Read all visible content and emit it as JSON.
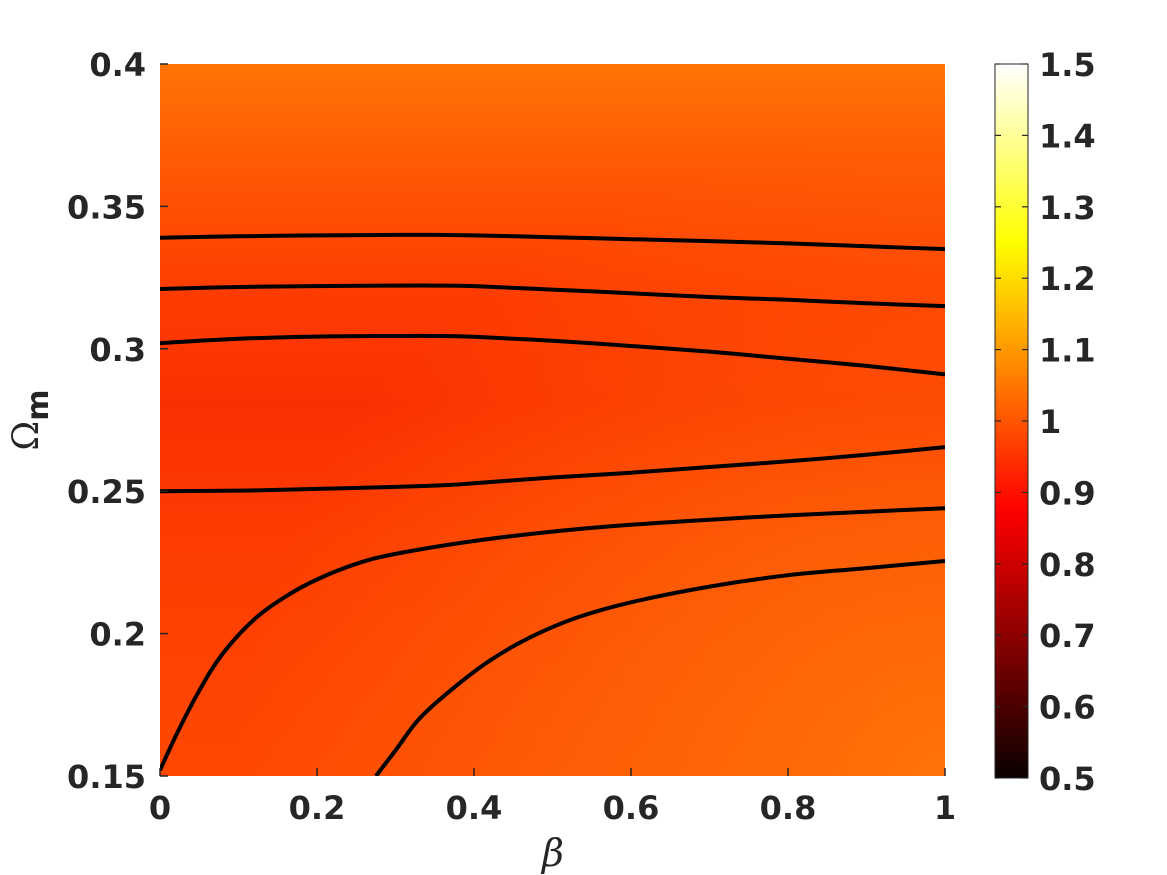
{
  "chart_data": {
    "type": "heatmap",
    "title": "",
    "xlabel": "β",
    "ylabel_symbol": "Ω",
    "ylabel_subscript": "m",
    "xlim": [
      0,
      1
    ],
    "ylim": [
      0.15,
      0.4
    ],
    "x_ticks": [
      0,
      0.2,
      0.4,
      0.6,
      0.8,
      1
    ],
    "x_tick_labels": [
      "0",
      "0.2",
      "0.4",
      "0.6",
      "0.8",
      "1"
    ],
    "y_ticks": [
      0.15,
      0.2,
      0.25,
      0.3,
      0.35,
      0.4
    ],
    "y_tick_labels": [
      "0.15",
      "0.2",
      "0.25",
      "0.3",
      "0.35",
      "0.4"
    ],
    "colorbar": {
      "colormap": "hot",
      "range": [
        0.5,
        1.5
      ],
      "ticks": [
        0.5,
        0.6,
        0.7,
        0.8,
        0.9,
        1,
        1.1,
        1.2,
        1.3,
        1.4,
        1.5
      ],
      "tick_labels": [
        "0.5",
        "0.6",
        "0.7",
        "0.8",
        "0.9",
        "1",
        "1.1",
        "1.2",
        "1.3",
        "1.4",
        "1.5"
      ]
    },
    "heatmap_samples": {
      "x": [
        0,
        0.5,
        1
      ],
      "y": [
        0.15,
        0.2,
        0.25,
        0.275,
        0.3,
        0.35,
        0.4
      ],
      "z": [
        [
          0.99,
          1.01,
          1.05
        ],
        [
          0.98,
          0.99,
          1.01
        ],
        [
          0.97,
          0.97,
          0.98
        ],
        [
          0.96,
          0.96,
          0.97
        ],
        [
          0.97,
          0.97,
          0.98
        ],
        [
          0.99,
          0.99,
          1.0
        ],
        [
          1.04,
          1.04,
          1.04
        ]
      ]
    },
    "contours": [
      {
        "name": "c1",
        "points": [
          [
            0,
            0.339
          ],
          [
            0.1,
            0.3395
          ],
          [
            0.2,
            0.3398
          ],
          [
            0.3,
            0.34
          ],
          [
            0.35,
            0.34
          ],
          [
            0.4,
            0.3398
          ],
          [
            0.5,
            0.3392
          ],
          [
            0.6,
            0.3385
          ],
          [
            0.7,
            0.3378
          ],
          [
            0.8,
            0.337
          ],
          [
            0.9,
            0.336
          ],
          [
            1,
            0.335
          ]
        ]
      },
      {
        "name": "c2",
        "points": [
          [
            0,
            0.321
          ],
          [
            0.1,
            0.3217
          ],
          [
            0.2,
            0.322
          ],
          [
            0.3,
            0.3222
          ],
          [
            0.35,
            0.3222
          ],
          [
            0.4,
            0.322
          ],
          [
            0.5,
            0.3208
          ],
          [
            0.6,
            0.3195
          ],
          [
            0.7,
            0.3182
          ],
          [
            0.8,
            0.3172
          ],
          [
            0.9,
            0.316
          ],
          [
            1,
            0.315
          ]
        ]
      },
      {
        "name": "c3",
        "points": [
          [
            0,
            0.302
          ],
          [
            0.1,
            0.3035
          ],
          [
            0.2,
            0.3043
          ],
          [
            0.3,
            0.3045
          ],
          [
            0.35,
            0.3045
          ],
          [
            0.4,
            0.3042
          ],
          [
            0.5,
            0.3028
          ],
          [
            0.6,
            0.301
          ],
          [
            0.7,
            0.299
          ],
          [
            0.8,
            0.2965
          ],
          [
            0.9,
            0.294
          ],
          [
            1,
            0.291
          ]
        ]
      },
      {
        "name": "c4",
        "points": [
          [
            0,
            0.25
          ],
          [
            0.1,
            0.2502
          ],
          [
            0.2,
            0.2508
          ],
          [
            0.3,
            0.2515
          ],
          [
            0.37,
            0.2522
          ],
          [
            0.4,
            0.2528
          ],
          [
            0.5,
            0.2548
          ],
          [
            0.6,
            0.2565
          ],
          [
            0.7,
            0.2585
          ],
          [
            0.8,
            0.2605
          ],
          [
            0.9,
            0.2628
          ],
          [
            1,
            0.2655
          ]
        ]
      },
      {
        "name": "c5",
        "points": [
          [
            0,
            0.152
          ],
          [
            0.02,
            0.164
          ],
          [
            0.05,
            0.18
          ],
          [
            0.08,
            0.193
          ],
          [
            0.12,
            0.205
          ],
          [
            0.16,
            0.213
          ],
          [
            0.2,
            0.219
          ],
          [
            0.25,
            0.2245
          ],
          [
            0.3,
            0.228
          ],
          [
            0.4,
            0.2325
          ],
          [
            0.5,
            0.2358
          ],
          [
            0.6,
            0.2382
          ],
          [
            0.7,
            0.24
          ],
          [
            0.8,
            0.2415
          ],
          [
            0.9,
            0.2428
          ],
          [
            1,
            0.244
          ]
        ]
      },
      {
        "name": "c6",
        "points": [
          [
            0.275,
            0.15
          ],
          [
            0.3,
            0.159
          ],
          [
            0.33,
            0.17
          ],
          [
            0.37,
            0.18
          ],
          [
            0.42,
            0.1905
          ],
          [
            0.47,
            0.1985
          ],
          [
            0.53,
            0.2055
          ],
          [
            0.6,
            0.211
          ],
          [
            0.7,
            0.2165
          ],
          [
            0.8,
            0.2205
          ],
          [
            0.9,
            0.223
          ],
          [
            1,
            0.2255
          ]
        ]
      }
    ]
  }
}
